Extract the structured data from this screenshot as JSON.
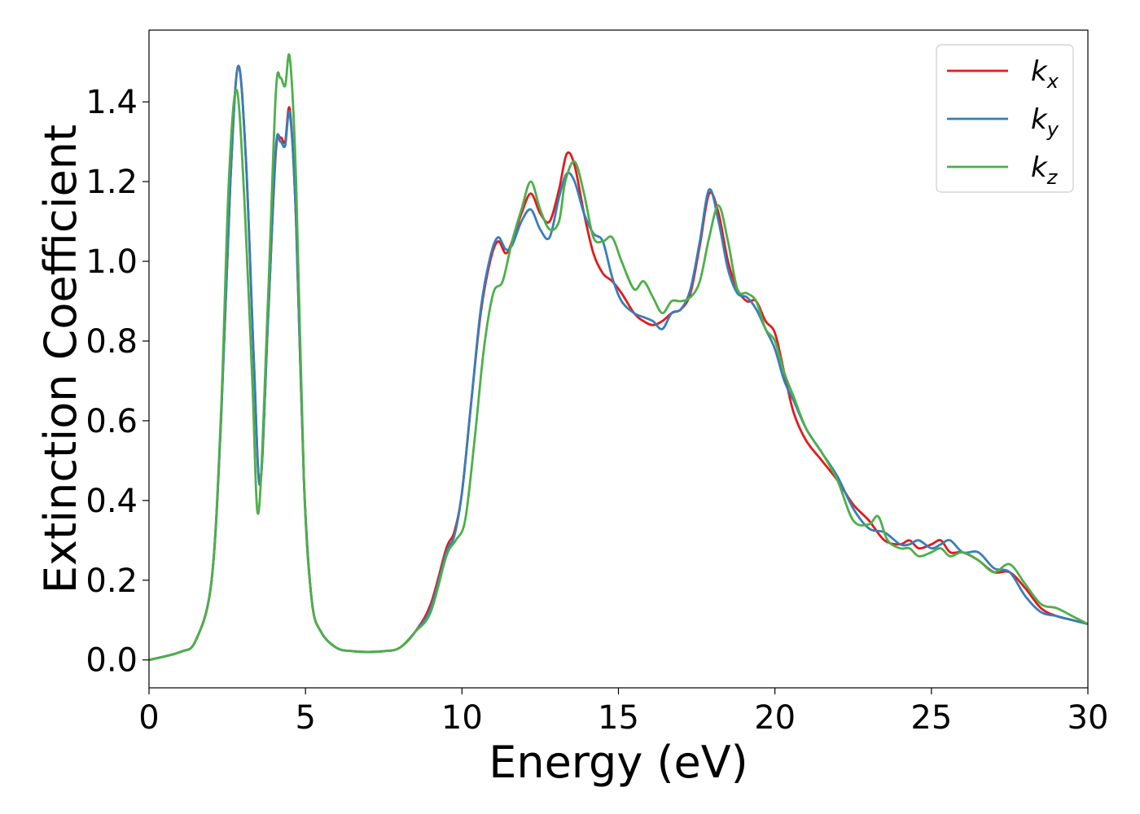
{
  "chart_data": {
    "type": "line",
    "title": "",
    "xlabel": "Energy (eV)",
    "ylabel": "Extinction Coefficient",
    "xlim": [
      0,
      30
    ],
    "ylim": [
      -0.07,
      1.58
    ],
    "xticks": [
      0,
      5,
      10,
      15,
      20,
      25,
      30
    ],
    "xtick_labels": [
      "0",
      "5",
      "10",
      "15",
      "20",
      "25",
      "30"
    ],
    "yticks": [
      0.0,
      0.2,
      0.4,
      0.6,
      0.8,
      1.0,
      1.2,
      1.4
    ],
    "ytick_labels": [
      "0.0",
      "0.2",
      "0.4",
      "0.6",
      "0.8",
      "1.0",
      "1.2",
      "1.4"
    ],
    "grid": false,
    "legend_position": "top-right",
    "series": [
      {
        "name": "k_x",
        "label_base": "k",
        "label_sub": "x",
        "color": "#e41a1c",
        "x": [
          0,
          1,
          1.5,
          2,
          2.3,
          2.6,
          2.85,
          3.1,
          3.35,
          3.55,
          3.8,
          4.05,
          4.2,
          4.35,
          4.5,
          4.7,
          4.95,
          5.2,
          5.5,
          6,
          6.5,
          7,
          7.5,
          8,
          8.5,
          9,
          9.5,
          9.75,
          10,
          10.3,
          10.6,
          10.9,
          11.15,
          11.4,
          11.6,
          11.9,
          12.2,
          12.5,
          12.8,
          13.1,
          13.35,
          13.6,
          13.9,
          14.2,
          14.5,
          14.8,
          15.1,
          15.5,
          15.8,
          16.1,
          16.4,
          16.7,
          17,
          17.3,
          17.6,
          17.9,
          18.2,
          18.5,
          18.8,
          19.1,
          19.4,
          19.7,
          20,
          20.3,
          20.6,
          21,
          21.5,
          22,
          22.5,
          23,
          23.5,
          24,
          24.3,
          24.6,
          25,
          25.3,
          25.6,
          26,
          26.5,
          27,
          27.5,
          28,
          28.5,
          29,
          29.5,
          30
        ],
        "y": [
          0.0,
          0.02,
          0.05,
          0.2,
          0.6,
          1.2,
          1.49,
          1.25,
          0.75,
          0.44,
          0.85,
          1.27,
          1.31,
          1.3,
          1.38,
          1.1,
          0.45,
          0.15,
          0.07,
          0.03,
          0.022,
          0.02,
          0.022,
          0.03,
          0.07,
          0.14,
          0.28,
          0.32,
          0.42,
          0.65,
          0.87,
          1.0,
          1.05,
          1.02,
          1.05,
          1.12,
          1.17,
          1.12,
          1.1,
          1.18,
          1.27,
          1.24,
          1.12,
          1.02,
          0.97,
          0.95,
          0.92,
          0.87,
          0.85,
          0.84,
          0.85,
          0.87,
          0.88,
          0.92,
          1.04,
          1.17,
          1.12,
          1.0,
          0.93,
          0.9,
          0.9,
          0.85,
          0.82,
          0.72,
          0.62,
          0.55,
          0.5,
          0.45,
          0.39,
          0.35,
          0.3,
          0.29,
          0.3,
          0.28,
          0.29,
          0.3,
          0.27,
          0.27,
          0.25,
          0.22,
          0.22,
          0.18,
          0.13,
          0.11,
          0.1,
          0.09
        ]
      },
      {
        "name": "k_y",
        "label_base": "k",
        "label_sub": "y",
        "color": "#377eb8",
        "x": [
          0,
          1,
          1.5,
          2,
          2.3,
          2.6,
          2.85,
          3.1,
          3.35,
          3.55,
          3.8,
          4.05,
          4.2,
          4.35,
          4.5,
          4.7,
          4.95,
          5.2,
          5.5,
          6,
          6.5,
          7,
          7.5,
          8,
          8.5,
          9,
          9.5,
          9.75,
          10,
          10.3,
          10.6,
          10.9,
          11.15,
          11.4,
          11.6,
          11.9,
          12.2,
          12.5,
          12.8,
          13.1,
          13.35,
          13.6,
          13.9,
          14.2,
          14.5,
          14.8,
          15.1,
          15.5,
          15.8,
          16.1,
          16.4,
          16.7,
          17,
          17.3,
          17.6,
          17.9,
          18.2,
          18.5,
          18.8,
          19.1,
          19.4,
          19.7,
          20,
          20.3,
          20.6,
          21,
          21.5,
          22,
          22.5,
          23,
          23.5,
          24,
          24.3,
          24.6,
          25,
          25.3,
          25.6,
          26,
          26.5,
          27,
          27.5,
          28,
          28.5,
          29,
          29.5,
          30
        ],
        "y": [
          0.0,
          0.02,
          0.05,
          0.2,
          0.6,
          1.2,
          1.49,
          1.25,
          0.75,
          0.44,
          0.85,
          1.28,
          1.3,
          1.29,
          1.37,
          1.1,
          0.45,
          0.15,
          0.07,
          0.03,
          0.022,
          0.02,
          0.022,
          0.03,
          0.07,
          0.13,
          0.27,
          0.31,
          0.42,
          0.65,
          0.88,
          1.01,
          1.06,
          1.03,
          1.04,
          1.1,
          1.13,
          1.08,
          1.06,
          1.16,
          1.22,
          1.2,
          1.12,
          1.07,
          1.05,
          0.96,
          0.9,
          0.87,
          0.86,
          0.85,
          0.83,
          0.87,
          0.88,
          0.93,
          1.05,
          1.18,
          1.1,
          0.98,
          0.92,
          0.91,
          0.88,
          0.83,
          0.78,
          0.7,
          0.65,
          0.58,
          0.52,
          0.46,
          0.38,
          0.33,
          0.32,
          0.29,
          0.29,
          0.3,
          0.28,
          0.29,
          0.3,
          0.27,
          0.27,
          0.23,
          0.22,
          0.16,
          0.12,
          0.11,
          0.1,
          0.09
        ]
      },
      {
        "name": "k_z",
        "label_base": "k",
        "label_sub": "z",
        "color": "#4daf4a",
        "x": [
          0,
          1,
          1.5,
          2,
          2.3,
          2.55,
          2.8,
          3.05,
          3.3,
          3.5,
          3.8,
          4.05,
          4.2,
          4.35,
          4.5,
          4.7,
          4.95,
          5.2,
          5.5,
          6,
          6.5,
          7,
          7.5,
          8,
          8.5,
          9,
          9.5,
          9.8,
          10.1,
          10.4,
          10.7,
          11,
          11.3,
          11.6,
          11.9,
          12.2,
          12.5,
          12.8,
          13.1,
          13.3,
          13.6,
          13.9,
          14.2,
          14.5,
          14.8,
          15.1,
          15.5,
          15.8,
          16.1,
          16.4,
          16.7,
          17,
          17.3,
          17.6,
          17.9,
          18.2,
          18.5,
          18.8,
          19.1,
          19.4,
          19.7,
          20,
          20.3,
          20.6,
          21,
          21.5,
          22,
          22.5,
          23,
          23.3,
          23.6,
          24,
          24.3,
          24.6,
          25,
          25.3,
          25.6,
          26,
          26.5,
          27,
          27.5,
          28,
          28.5,
          29,
          29.5,
          30
        ],
        "y": [
          0.0,
          0.02,
          0.05,
          0.2,
          0.62,
          1.2,
          1.43,
          1.15,
          0.7,
          0.37,
          0.9,
          1.42,
          1.46,
          1.44,
          1.51,
          1.2,
          0.45,
          0.15,
          0.07,
          0.03,
          0.022,
          0.02,
          0.022,
          0.03,
          0.07,
          0.12,
          0.26,
          0.3,
          0.35,
          0.55,
          0.78,
          0.92,
          0.95,
          1.05,
          1.13,
          1.2,
          1.13,
          1.08,
          1.1,
          1.2,
          1.25,
          1.17,
          1.06,
          1.05,
          1.06,
          1.0,
          0.93,
          0.95,
          0.91,
          0.87,
          0.9,
          0.9,
          0.91,
          0.95,
          1.06,
          1.14,
          1.05,
          0.93,
          0.92,
          0.9,
          0.83,
          0.8,
          0.72,
          0.66,
          0.58,
          0.52,
          0.45,
          0.35,
          0.34,
          0.36,
          0.3,
          0.28,
          0.28,
          0.26,
          0.27,
          0.28,
          0.26,
          0.27,
          0.25,
          0.22,
          0.24,
          0.19,
          0.14,
          0.13,
          0.11,
          0.09
        ]
      }
    ]
  }
}
